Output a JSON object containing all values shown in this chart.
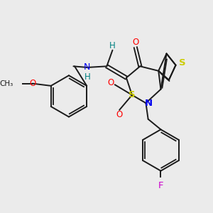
{
  "background_color": "#ebebeb",
  "figure_size": [
    3.0,
    3.0
  ],
  "dpi": 100,
  "bond_color": "#1a1a1a",
  "colors": {
    "S": "#cccc00",
    "N": "#0000ee",
    "O": "#ff0000",
    "F": "#cc00cc",
    "NH": "#008080",
    "H": "#008080"
  }
}
